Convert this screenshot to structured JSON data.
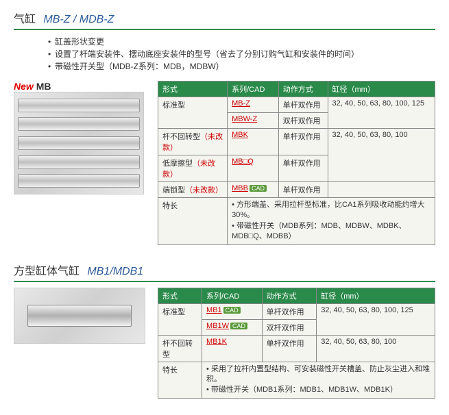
{
  "section1": {
    "title_label": "气缸",
    "title_model": "MB-Z / MDB-Z",
    "bullets": [
      "缸盖形状变更",
      "设置了杆端安装件、摆动底座安装件的型号（省去了分别订购气缸和安装件的时间）",
      "带磁性开关型（MDB-Z系列：MDB，MDBW）"
    ],
    "new_badge": "New",
    "new_badge_mb": "MB",
    "table": {
      "headers": [
        "形式",
        "系列/CAD",
        "动作方式",
        "缸径（mm）"
      ],
      "rows": [
        {
          "form": "标准型",
          "series_link": "MB-Z",
          "action": "单杆双作用",
          "bore": "32, 40, 50, 63, 80, 100, 125",
          "rowspan_form": 2,
          "rowspan_bore": 2
        },
        {
          "series_link": "MBW-Z",
          "action": "双杆双作用"
        },
        {
          "form": "杆不回转型（未改款）",
          "form_red": "（未改款）",
          "series_link": "MBK",
          "action": "单杆双作用",
          "bore": "32, 40, 50, 63, 80, 100",
          "rowspan_bore": 2
        },
        {
          "form": "低摩擦型（未改款）",
          "form_red": "（未改款）",
          "series_link": "MB□Q",
          "action": "单杆双作用"
        },
        {
          "form": "端锁型（未改款）",
          "form_red": "（未改款）",
          "series_link": "MBB",
          "cad": true,
          "action": "单杆双作用",
          "bore": ""
        },
        {
          "form": "特长",
          "note1": "方形端盖、采用拉杆型标准，比CA1系列吸收动能约增大30%。",
          "note2": "带磁性开关（MDB系列：MDB、MDBW、MDBK、MDB□Q、MDBB）",
          "colspan": 3
        }
      ]
    }
  },
  "section2": {
    "title_label": "方型缸体气缸",
    "title_model": "MB1/MDB1",
    "table": {
      "headers": [
        "形式",
        "系列/CAD",
        "动作方式",
        "缸径（mm）"
      ],
      "rows": [
        {
          "form": "标准型",
          "series_link": "MB1",
          "cad": true,
          "action": "单杆双作用",
          "bore": "32, 40, 50, 63, 80, 100, 125",
          "rowspan_form": 2,
          "rowspan_bore": 2
        },
        {
          "series_link": "MB1W",
          "cad": true,
          "action": "双杆双作用"
        },
        {
          "form": "杆不回转型",
          "series_link": "MB1K",
          "action": "单杆双作用",
          "bore": "32, 40, 50, 63, 80, 100"
        },
        {
          "form": "特长",
          "note1": "采用了拉杆内置型结构、可安装磁性开关槽盖、防止灰尘进入和堆积。",
          "note2": "带磁性开关（MDB1系列：MDB1、MDB1W、MDB1K）",
          "colspan": 3
        }
      ]
    }
  }
}
